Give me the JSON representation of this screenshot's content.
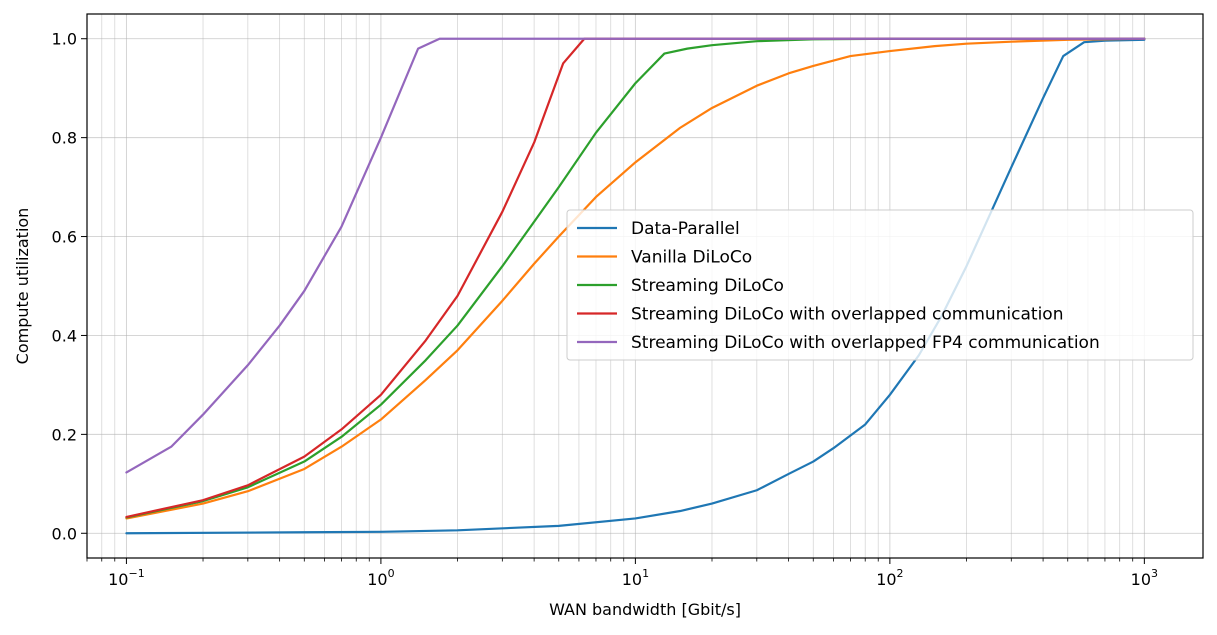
{
  "chart_data": {
    "type": "line",
    "title": "",
    "xlabel": "WAN bandwidth [Gbit/s]",
    "ylabel": "Compute utilization",
    "xscale": "log",
    "xlim": [
      0.07,
      1700
    ],
    "ylim": [
      -0.05,
      1.05
    ],
    "grid": true,
    "legend_position": "center-right",
    "x_ticks": [
      {
        "value": 0.1,
        "base": "10",
        "exp": "−1"
      },
      {
        "value": 1,
        "base": "10",
        "exp": "0"
      },
      {
        "value": 10,
        "base": "10",
        "exp": "1"
      },
      {
        "value": 100,
        "base": "10",
        "exp": "2"
      },
      {
        "value": 1000,
        "base": "10",
        "exp": "3"
      }
    ],
    "y_ticks": [
      {
        "value": 0.0,
        "label": "0.0"
      },
      {
        "value": 0.2,
        "label": "0.2"
      },
      {
        "value": 0.4,
        "label": "0.4"
      },
      {
        "value": 0.6,
        "label": "0.6"
      },
      {
        "value": 0.8,
        "label": "0.8"
      },
      {
        "value": 1.0,
        "label": "1.0"
      }
    ],
    "series": [
      {
        "name": "Data-Parallel",
        "color": "#1f77b4",
        "x": [
          0.1,
          0.5,
          1,
          2,
          5,
          10,
          15,
          20,
          30,
          40,
          50,
          60,
          80,
          100,
          130,
          160,
          200,
          250,
          300,
          400,
          480,
          580,
          700,
          1000
        ],
        "y": [
          0.0,
          0.002,
          0.003,
          0.006,
          0.015,
          0.03,
          0.045,
          0.06,
          0.087,
          0.12,
          0.145,
          0.172,
          0.22,
          0.28,
          0.36,
          0.44,
          0.54,
          0.65,
          0.74,
          0.88,
          0.965,
          0.993,
          0.996,
          0.998
        ]
      },
      {
        "name": "Vanilla DiLoCo",
        "color": "#ff7f0e",
        "x": [
          0.1,
          0.2,
          0.3,
          0.5,
          0.7,
          1,
          1.5,
          2,
          3,
          4,
          5,
          7,
          10,
          15,
          20,
          30,
          40,
          50,
          70,
          100,
          150,
          200,
          300,
          500,
          1000
        ],
        "y": [
          0.03,
          0.06,
          0.085,
          0.13,
          0.175,
          0.23,
          0.31,
          0.37,
          0.47,
          0.545,
          0.6,
          0.68,
          0.75,
          0.82,
          0.86,
          0.905,
          0.93,
          0.945,
          0.965,
          0.975,
          0.985,
          0.99,
          0.994,
          0.998,
          1.0
        ]
      },
      {
        "name": "Streaming DiLoCo",
        "color": "#2ca02c",
        "x": [
          0.1,
          0.2,
          0.3,
          0.5,
          0.7,
          1,
          1.5,
          2,
          3,
          4,
          5,
          7,
          10,
          13,
          16,
          20,
          30,
          50,
          100,
          1000
        ],
        "y": [
          0.032,
          0.065,
          0.093,
          0.145,
          0.195,
          0.26,
          0.35,
          0.42,
          0.54,
          0.63,
          0.7,
          0.81,
          0.91,
          0.97,
          0.98,
          0.987,
          0.995,
          0.999,
          1.0,
          1.0
        ]
      },
      {
        "name": "Streaming DiLoCo with overlapped communication",
        "color": "#d62728",
        "x": [
          0.1,
          0.2,
          0.3,
          0.5,
          0.7,
          1,
          1.5,
          2,
          3,
          4,
          5.2,
          6.3,
          10,
          100,
          1000
        ],
        "y": [
          0.033,
          0.067,
          0.097,
          0.155,
          0.21,
          0.28,
          0.39,
          0.48,
          0.65,
          0.79,
          0.95,
          1.0,
          1.0,
          1.0,
          1.0
        ]
      },
      {
        "name": "Streaming DiLoCo with overlapped FP4 communication",
        "color": "#9467bd",
        "x": [
          0.1,
          0.15,
          0.2,
          0.3,
          0.4,
          0.5,
          0.7,
          1,
          1.4,
          1.7,
          10,
          100,
          1000
        ],
        "y": [
          0.123,
          0.175,
          0.24,
          0.34,
          0.42,
          0.49,
          0.62,
          0.8,
          0.98,
          1.0,
          1.0,
          1.0,
          1.0
        ]
      }
    ]
  }
}
